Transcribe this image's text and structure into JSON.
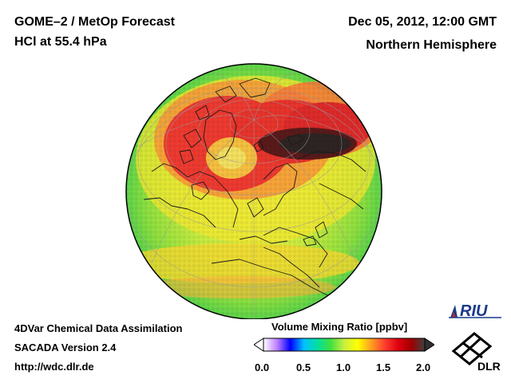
{
  "header": {
    "title_line1": "GOME–2 / MetOp Forecast",
    "title_line2": "HCl at 55.4 hPa",
    "date": "Dec 05, 2012, 12:00 GMT",
    "hemisphere": "Northern Hemisphere"
  },
  "footer": {
    "line1": "4DVar Chemical Data Assimilation",
    "line2": "SACADA Version 2.4",
    "url": "http://wdc.dlr.de"
  },
  "colorbar": {
    "title": "Volume Mixing Ratio [ppbv]",
    "range": [
      0.0,
      2.0
    ],
    "ticks": [
      "0.0",
      "0.5",
      "1.0",
      "1.5",
      "2.0"
    ],
    "colors": [
      "#ffffff",
      "#c080ff",
      "#0000ff",
      "#00c0ff",
      "#00e0a0",
      "#40e040",
      "#c8f040",
      "#ffff00",
      "#ffa020",
      "#ff4030",
      "#e00010",
      "#a00000",
      "#404040"
    ]
  },
  "logos": {
    "riu": "RIU",
    "dlr": "DLR"
  },
  "map": {
    "projection": "orthographic",
    "icon": "globe-map"
  }
}
